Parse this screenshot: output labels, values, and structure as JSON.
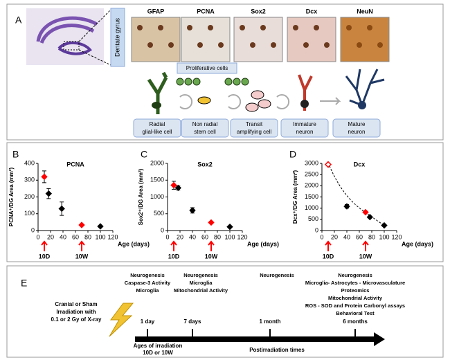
{
  "panel_a": {
    "label": "A",
    "region": "Dentate gyrus",
    "markers": [
      "GFAP",
      "PCNA",
      "Sox2",
      "Dcx",
      "NeuN"
    ],
    "group": "Proliferative cells",
    "cells": [
      [
        "Radial",
        "glial-like cell"
      ],
      [
        "Non radial",
        "stem cell"
      ],
      [
        "Transit",
        "amplifying cell"
      ],
      [
        "Immature",
        "neuron"
      ],
      [
        "Mature",
        "neuron"
      ]
    ]
  },
  "chart_data": [
    {
      "type": "scatter",
      "panel": "B",
      "title": "PCNA",
      "y_label": "PCNA⁺/DG Area (mm²)",
      "x_label": "Age (days)",
      "xlim": [
        0,
        120
      ],
      "xticks": [
        0,
        20,
        40,
        60,
        80,
        100,
        120
      ],
      "ylim": [
        0,
        400
      ],
      "yticks": [
        0,
        100,
        200,
        300,
        400
      ],
      "series": [
        {
          "color": "#000000",
          "marker": "diamond",
          "x": [
            17,
            38,
            100
          ],
          "values": [
            220,
            130,
            25
          ],
          "errors": [
            30,
            40,
            null
          ]
        },
        {
          "color": "#ff0000",
          "marker": "diamond",
          "x": [
            10,
            70
          ],
          "values": [
            320,
            33
          ],
          "errors": [
            35,
            null
          ]
        }
      ],
      "annotations": [
        {
          "x": 10,
          "text": "10D"
        },
        {
          "x": 70,
          "text": "10W"
        }
      ],
      "annotation_color": "#ff0000"
    },
    {
      "type": "scatter",
      "panel": "C",
      "title": "Sox2",
      "y_label": "Sox2⁺/DG Area (mm²)",
      "x_label": "Age (days)",
      "xlim": [
        0,
        120
      ],
      "xticks": [
        0,
        20,
        40,
        60,
        80,
        100,
        120
      ],
      "ylim": [
        0,
        2000
      ],
      "yticks": [
        0,
        500,
        1000,
        1500,
        2000
      ],
      "series": [
        {
          "color": "#000000",
          "marker": "diamond",
          "x": [
            17,
            40,
            100
          ],
          "values": [
            1270,
            600,
            110
          ],
          "errors": [
            60,
            80,
            null
          ]
        },
        {
          "color": "#ff0000",
          "marker": "diamond",
          "x": [
            10,
            70
          ],
          "values": [
            1350,
            240
          ],
          "errors": [
            120,
            null
          ]
        }
      ],
      "annotations": [
        {
          "x": 10,
          "text": "10D"
        },
        {
          "x": 70,
          "text": "10W"
        }
      ],
      "annotation_color": "#ff0000"
    },
    {
      "type": "scatter",
      "panel": "D",
      "title": "Dcx",
      "y_label": "Dcx⁺/DG Area (mm²)",
      "x_label": "Age (days)",
      "xlim": [
        0,
        120
      ],
      "xticks": [
        0,
        20,
        40,
        60,
        80,
        100,
        120
      ],
      "ylim": [
        0,
        3000
      ],
      "yticks": [
        0,
        500,
        1000,
        1500,
        2000,
        2500,
        3000
      ],
      "series": [
        {
          "color": "#000000",
          "marker": "diamond",
          "x": [
            40,
            77,
            100
          ],
          "values": [
            1080,
            600,
            230
          ],
          "errors": [
            80,
            null,
            null
          ]
        },
        {
          "color": "#ff0000",
          "marker": "diamond",
          "x": [
            70
          ],
          "values": [
            820
          ],
          "errors": [
            null
          ]
        },
        {
          "color": "#ff0000",
          "marker": "open-diamond",
          "x": [
            10
          ],
          "values": [
            2950
          ],
          "errors": [
            null
          ]
        }
      ],
      "annotations": [
        {
          "x": 10,
          "text": "10D"
        },
        {
          "x": 70,
          "text": "10W"
        }
      ],
      "annotation_color": "#ff0000"
    }
  ],
  "panel_e": {
    "label": "E",
    "irradiation": [
      "Cranial or Sham",
      "Irradiation  with",
      "0.1 or 2 Gy of X-ray"
    ],
    "ages": [
      "Ages of irradiation",
      "10D or 10W"
    ],
    "axis_label": "Postirradiation times",
    "timepoints": [
      {
        "time": "1 day",
        "assays": [
          "Neurogenesis",
          "Caspase-3 Activity",
          "Microglia"
        ]
      },
      {
        "time": "7 days",
        "assays": [
          "Neurogenesis",
          "Microglia",
          "Mitochondrial Activity"
        ]
      },
      {
        "time": "1 month",
        "assays": [
          "Neurogenesis"
        ]
      },
      {
        "time": "6 months",
        "assays": [
          "Neurogenesis",
          "Microglia- Astrocytes - Microvasculature",
          "Proteomics",
          "Mitochondrial Activity",
          "ROS - SOD and Protein Carbonyl assays",
          "Behavioral Test"
        ]
      }
    ]
  }
}
